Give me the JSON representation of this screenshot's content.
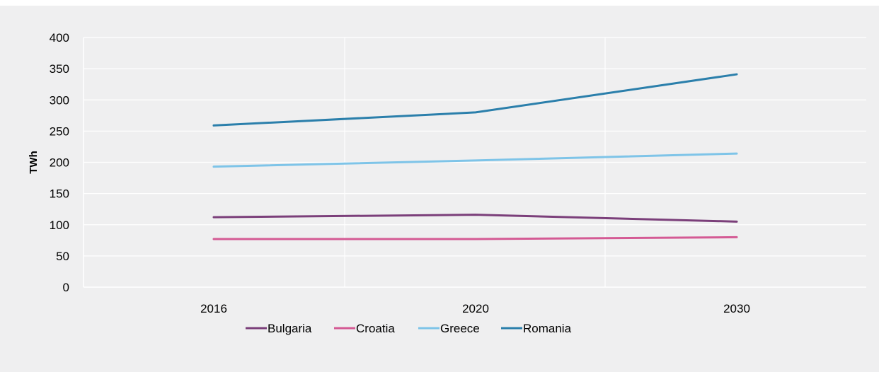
{
  "chart_data": {
    "type": "line",
    "title": "",
    "xlabel": "",
    "ylabel": "TWh",
    "categories": [
      "2016",
      "2020",
      "2030"
    ],
    "ylim": [
      0,
      400
    ],
    "yticks": [
      0,
      50,
      100,
      150,
      200,
      250,
      300,
      350,
      400
    ],
    "grid": true,
    "legend_position": "bottom",
    "series": [
      {
        "name": "Bulgaria",
        "color": "#7b3f7a",
        "values": [
          112,
          116,
          105
        ]
      },
      {
        "name": "Croatia",
        "color": "#d45a94",
        "values": [
          77,
          77,
          80
        ]
      },
      {
        "name": "Greece",
        "color": "#7ec4e8",
        "values": [
          193,
          203,
          214
        ]
      },
      {
        "name": "Romania",
        "color": "#2b7fab",
        "values": [
          259,
          280,
          341
        ]
      }
    ]
  }
}
